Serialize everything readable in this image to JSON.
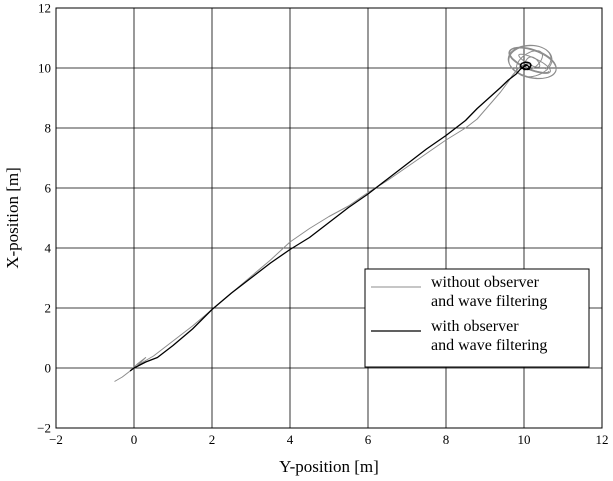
{
  "chart_data": {
    "type": "line",
    "title": "",
    "xlabel": "Y-position [m]",
    "ylabel": "X-position [m]",
    "xlim": [
      -2,
      12
    ],
    "ylim": [
      -2,
      12
    ],
    "x_ticks": [
      -2,
      0,
      2,
      4,
      6,
      8,
      10,
      12
    ],
    "y_ticks": [
      -2,
      0,
      2,
      4,
      6,
      8,
      10,
      12
    ],
    "x_tick_labels": [
      "−2",
      "0",
      "2",
      "4",
      "6",
      "8",
      "10",
      "12"
    ],
    "y_tick_labels": [
      "−2",
      "0",
      "2",
      "4",
      "6",
      "8",
      "10",
      "12"
    ],
    "grid": true,
    "legend_position": "lower-right",
    "series": [
      {
        "name": "without observer\nand wave filtering",
        "legend_lines": [
          "without observer",
          "and wave filtering"
        ],
        "color": "#8c8c8c",
        "x": [
          -0.5,
          -0.3,
          -0.1,
          0.1,
          0.3,
          0.1,
          0.5,
          1.0,
          1.5,
          2.0,
          2.5,
          3.0,
          3.5,
          4.0,
          4.5,
          5.0,
          5.5,
          6.0,
          6.5,
          7.0,
          7.5,
          8.0,
          8.5,
          8.8,
          9.1,
          9.4,
          9.6,
          9.7,
          9.8,
          9.9,
          10.0,
          10.1
        ],
        "y": [
          -0.45,
          -0.3,
          -0.1,
          0.15,
          0.35,
          0.1,
          0.4,
          0.9,
          1.4,
          1.95,
          2.5,
          3.05,
          3.6,
          4.2,
          4.65,
          5.05,
          5.4,
          5.85,
          6.25,
          6.7,
          7.15,
          7.6,
          8.0,
          8.3,
          8.75,
          9.2,
          9.55,
          9.75,
          9.9,
          10.05,
          10.1,
          10.15
        ],
        "spiral": {
          "center": [
            10.2,
            10.2
          ],
          "radius_x": [
            0.15,
            0.7
          ],
          "radius_y": [
            0.1,
            0.55
          ],
          "turns": 7,
          "outer_extent_x": 11.0,
          "outer_extent_y": 10.9
        }
      },
      {
        "name": "with observer\nand wave filtering",
        "legend_lines": [
          "with observer",
          "and wave filtering"
        ],
        "color": "#000000",
        "x": [
          -0.1,
          0.0,
          0.3,
          0.6,
          1.0,
          1.5,
          2.0,
          2.5,
          3.0,
          3.5,
          4.0,
          4.5,
          5.0,
          5.5,
          6.0,
          6.5,
          7.0,
          7.5,
          8.0,
          8.5,
          8.8,
          9.1,
          9.4,
          9.6,
          9.8,
          9.9,
          10.0,
          10.1
        ],
        "y": [
          -0.1,
          0.0,
          0.2,
          0.35,
          0.75,
          1.3,
          1.95,
          2.5,
          3.0,
          3.5,
          3.95,
          4.35,
          4.85,
          5.35,
          5.8,
          6.3,
          6.8,
          7.3,
          7.75,
          8.25,
          8.65,
          9.0,
          9.35,
          9.6,
          9.8,
          9.95,
          10.05,
          10.1
        ],
        "spiral": {
          "center": [
            10.05,
            10.05
          ],
          "radius_x": [
            0.05,
            0.15
          ],
          "radius_y": [
            0.05,
            0.15
          ],
          "turns": 3,
          "outer_extent_x": 10.2,
          "outer_extent_y": 10.2
        }
      }
    ]
  }
}
